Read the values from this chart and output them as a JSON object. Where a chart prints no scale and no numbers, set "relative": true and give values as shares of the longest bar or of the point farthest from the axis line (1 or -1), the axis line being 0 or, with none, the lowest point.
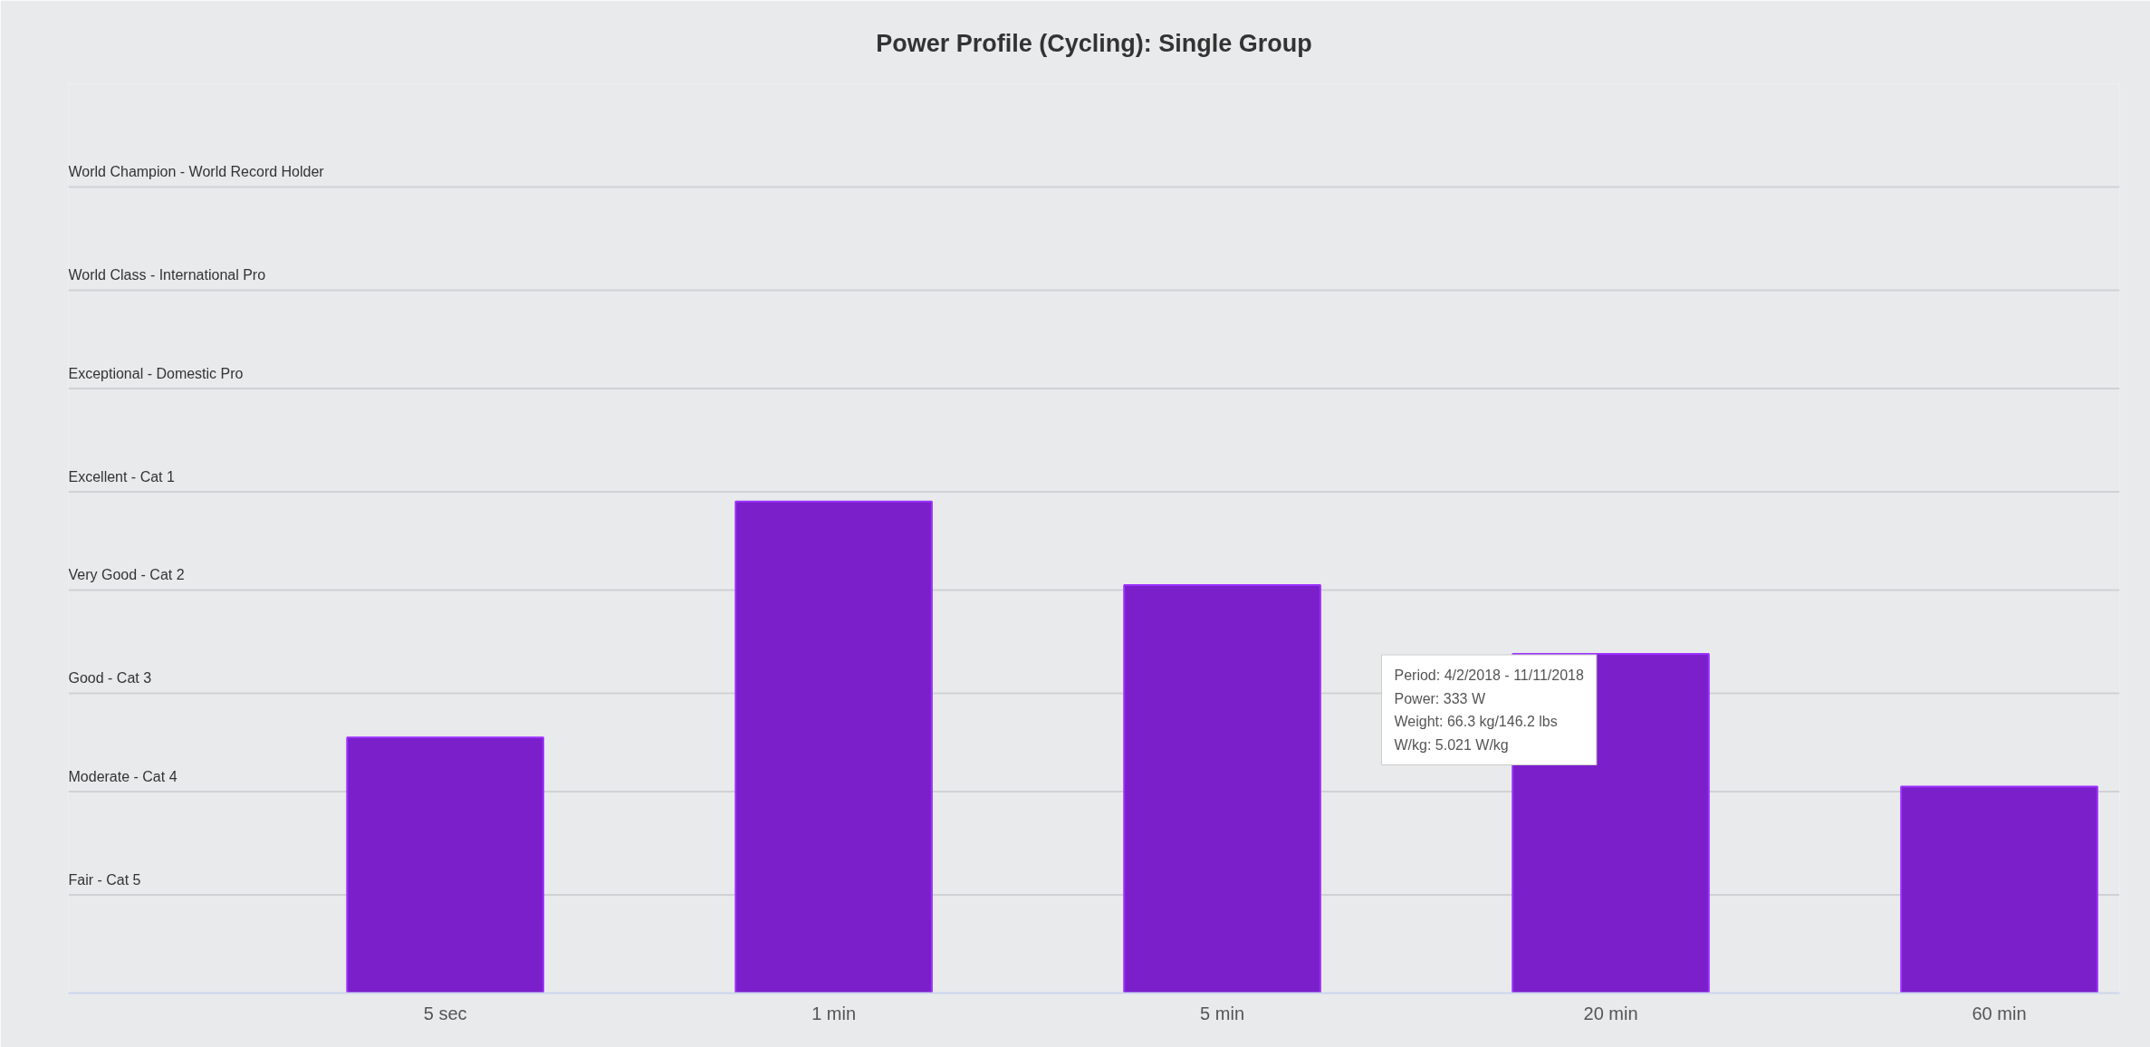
{
  "chart_data": {
    "type": "bar",
    "title": "Power Profile (Cycling): Single Group",
    "relative": true,
    "categories": [
      "5 sec",
      "1 min",
      "5 min",
      "20 min",
      "60 min"
    ],
    "values": [
      0.52,
      1,
      0.83,
      0.69,
      0.42
    ],
    "color": "#7a1fca",
    "ref_lines": [
      {
        "axis": "y",
        "value": 0.2,
        "label": "Fair - Cat 5"
      },
      {
        "axis": "y",
        "value": 0.41,
        "label": "Moderate - Cat 4"
      },
      {
        "axis": "y",
        "value": 0.61,
        "label": "Good - Cat 3"
      },
      {
        "axis": "y",
        "value": 0.82,
        "label": "Very Good - Cat 2"
      },
      {
        "axis": "y",
        "value": 1.02,
        "label": "Excellent - Cat 1"
      },
      {
        "axis": "y",
        "value": 1.23,
        "label": "Exceptional - Domestic Pro"
      },
      {
        "axis": "y",
        "value": 1.43,
        "label": "World Class - International Pro"
      },
      {
        "axis": "y",
        "value": 1.64,
        "label": "World Champion - World Record Holder"
      }
    ],
    "annotations": [
      "Period: 4/2/2018 - 11/11/2018",
      "Power: 333 W",
      "Weight: 66.3 kg/146.2 lbs",
      "W/kg: 5.021 W/kg"
    ]
  }
}
